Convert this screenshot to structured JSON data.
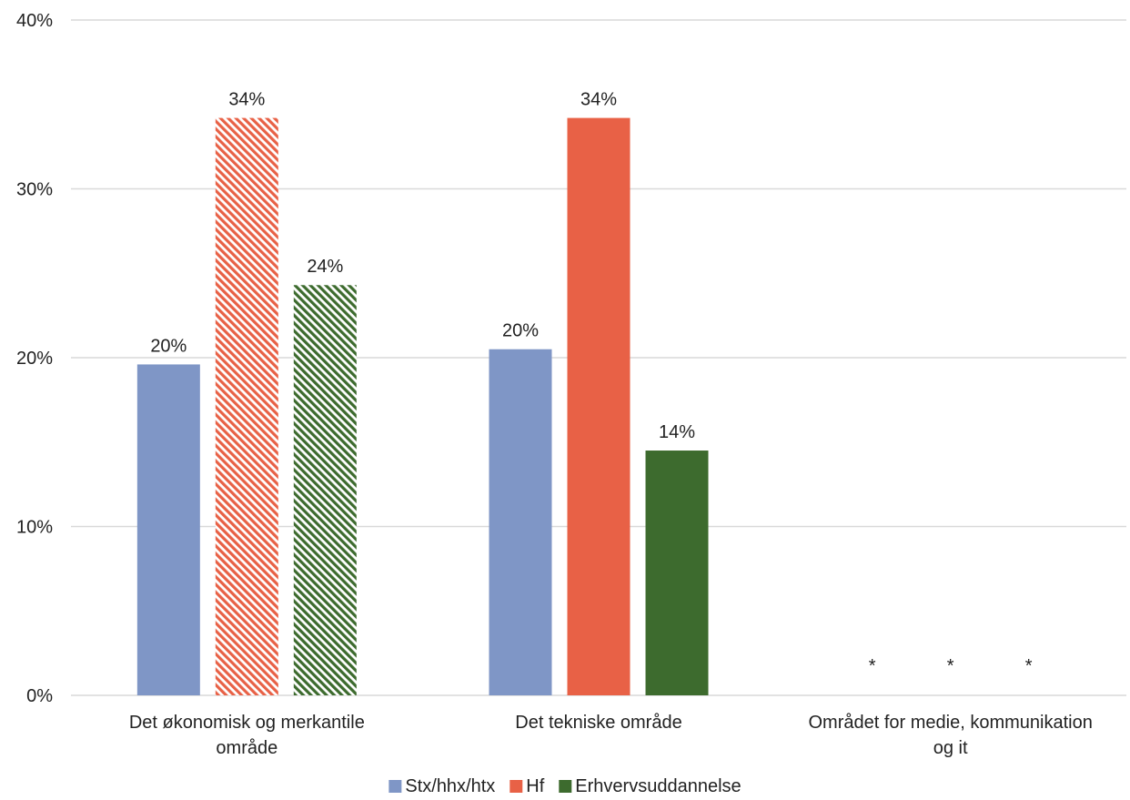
{
  "chart_data": {
    "type": "bar",
    "categories": [
      [
        "Det økonomisk og merkantile",
        "område"
      ],
      [
        "Det tekniske område"
      ],
      [
        "Området for medie, kommunikation",
        "og it"
      ]
    ],
    "series": [
      {
        "name": "Stx/hhx/htx",
        "color": "#7f96c6",
        "values": [
          19.6,
          20.5,
          null
        ],
        "labels": [
          "20%",
          "20%",
          "*"
        ],
        "hatched": [
          false,
          false,
          false
        ]
      },
      {
        "name": "Hf",
        "color": "#e86146",
        "values": [
          34.2,
          34.2,
          null
        ],
        "labels": [
          "34%",
          "34%",
          "*"
        ],
        "hatched": [
          true,
          false,
          false
        ]
      },
      {
        "name": "Erhvervsuddannelse",
        "color": "#3d6b2e",
        "values": [
          24.3,
          14.5,
          null
        ],
        "labels": [
          "24%",
          "14%",
          "*"
        ],
        "hatched": [
          true,
          false,
          false
        ]
      }
    ],
    "ylim": [
      0,
      40
    ],
    "yticks": [
      0,
      10,
      20,
      30,
      40
    ],
    "ytick_labels": [
      "0%",
      "10%",
      "20%",
      "30%",
      "40%"
    ],
    "grid": true,
    "legend_position": "bottom"
  }
}
